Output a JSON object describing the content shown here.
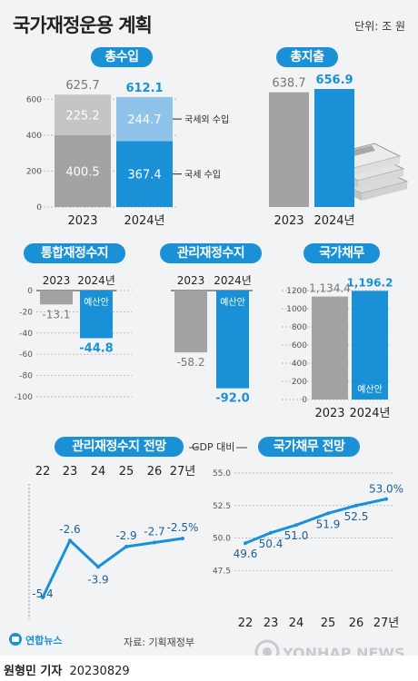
{
  "header": {
    "title": "국가재정운용 계획",
    "unit": "단위: 조 원"
  },
  "colors": {
    "accent": "#1a91d6",
    "accent_light": "#8fc3ea",
    "gray_dark": "#a3a3a3",
    "gray_light": "#c5c5c5",
    "text": "#222222"
  },
  "chart_data": [
    {
      "id": "total-revenue",
      "type": "bar",
      "title": "총수입",
      "categories": [
        "2023",
        "2024년"
      ],
      "series": [
        {
          "name": "국세 수입",
          "values": [
            400.5,
            367.4
          ]
        },
        {
          "name": "국세외 수입",
          "values": [
            225.2,
            244.7
          ]
        }
      ],
      "totals": [
        625.7,
        612.1
      ],
      "ylim": [
        0,
        600
      ],
      "yticks": [
        "0",
        "200",
        "400",
        "600"
      ]
    },
    {
      "id": "total-expenditure",
      "type": "bar",
      "title": "총지출",
      "categories": [
        "2023",
        "2024년"
      ],
      "values": [
        638.7,
        656.9
      ]
    },
    {
      "id": "consolidated-balance",
      "type": "bar",
      "title": "통합재정수지",
      "categories": [
        "2023",
        "2024년"
      ],
      "values": [
        -13.1,
        -44.8
      ],
      "yticks": [
        "0",
        "-20",
        "-40",
        "-60",
        "-80",
        "-100"
      ],
      "bar_note": "예산안"
    },
    {
      "id": "managed-balance",
      "type": "bar",
      "title": "관리재정수지",
      "categories": [
        "2023",
        "2024년"
      ],
      "values": [
        -58.2,
        -92.0
      ],
      "bar_note": "예산안"
    },
    {
      "id": "national-debt",
      "type": "bar",
      "title": "국가채무",
      "categories": [
        "2023",
        "2024년"
      ],
      "values": [
        1134.4,
        1196.2
      ],
      "yticks": [
        "0",
        "200",
        "400",
        "600",
        "800",
        "1000",
        "1200"
      ],
      "bar_note": "예산안"
    },
    {
      "id": "managed-balance-outlook",
      "type": "line",
      "title": "관리재정수지 전망",
      "subtitle": "GDP 대비",
      "x": [
        "22",
        "23",
        "24",
        "25",
        "26",
        "27년"
      ],
      "y": [
        -5.4,
        -2.6,
        -3.9,
        -2.9,
        -2.7,
        -2.5
      ],
      "labels": [
        "-5.4",
        "-2.6",
        "-3.9",
        "-2.9",
        "-2.7",
        "-2.5%"
      ]
    },
    {
      "id": "national-debt-outlook",
      "type": "line",
      "title": "국가채무 전망",
      "x": [
        "22",
        "23",
        "24",
        "25",
        "26",
        "27년"
      ],
      "y": [
        49.6,
        50.4,
        51.0,
        51.9,
        52.5,
        53.0
      ],
      "labels": [
        "49.6",
        "50.4",
        "51.0",
        "51.9",
        "52.5",
        "53.0%"
      ],
      "ylim": [
        45.0,
        55.0
      ],
      "yticks": [
        "47.5",
        "50.0",
        "52.5",
        "55.0"
      ]
    }
  ],
  "footer": {
    "source": "자료: 기획재정부",
    "brand": "연합뉴스",
    "watermark": "YONHAP NEWS",
    "reporter": "원형민 기자",
    "date": "20230829"
  }
}
